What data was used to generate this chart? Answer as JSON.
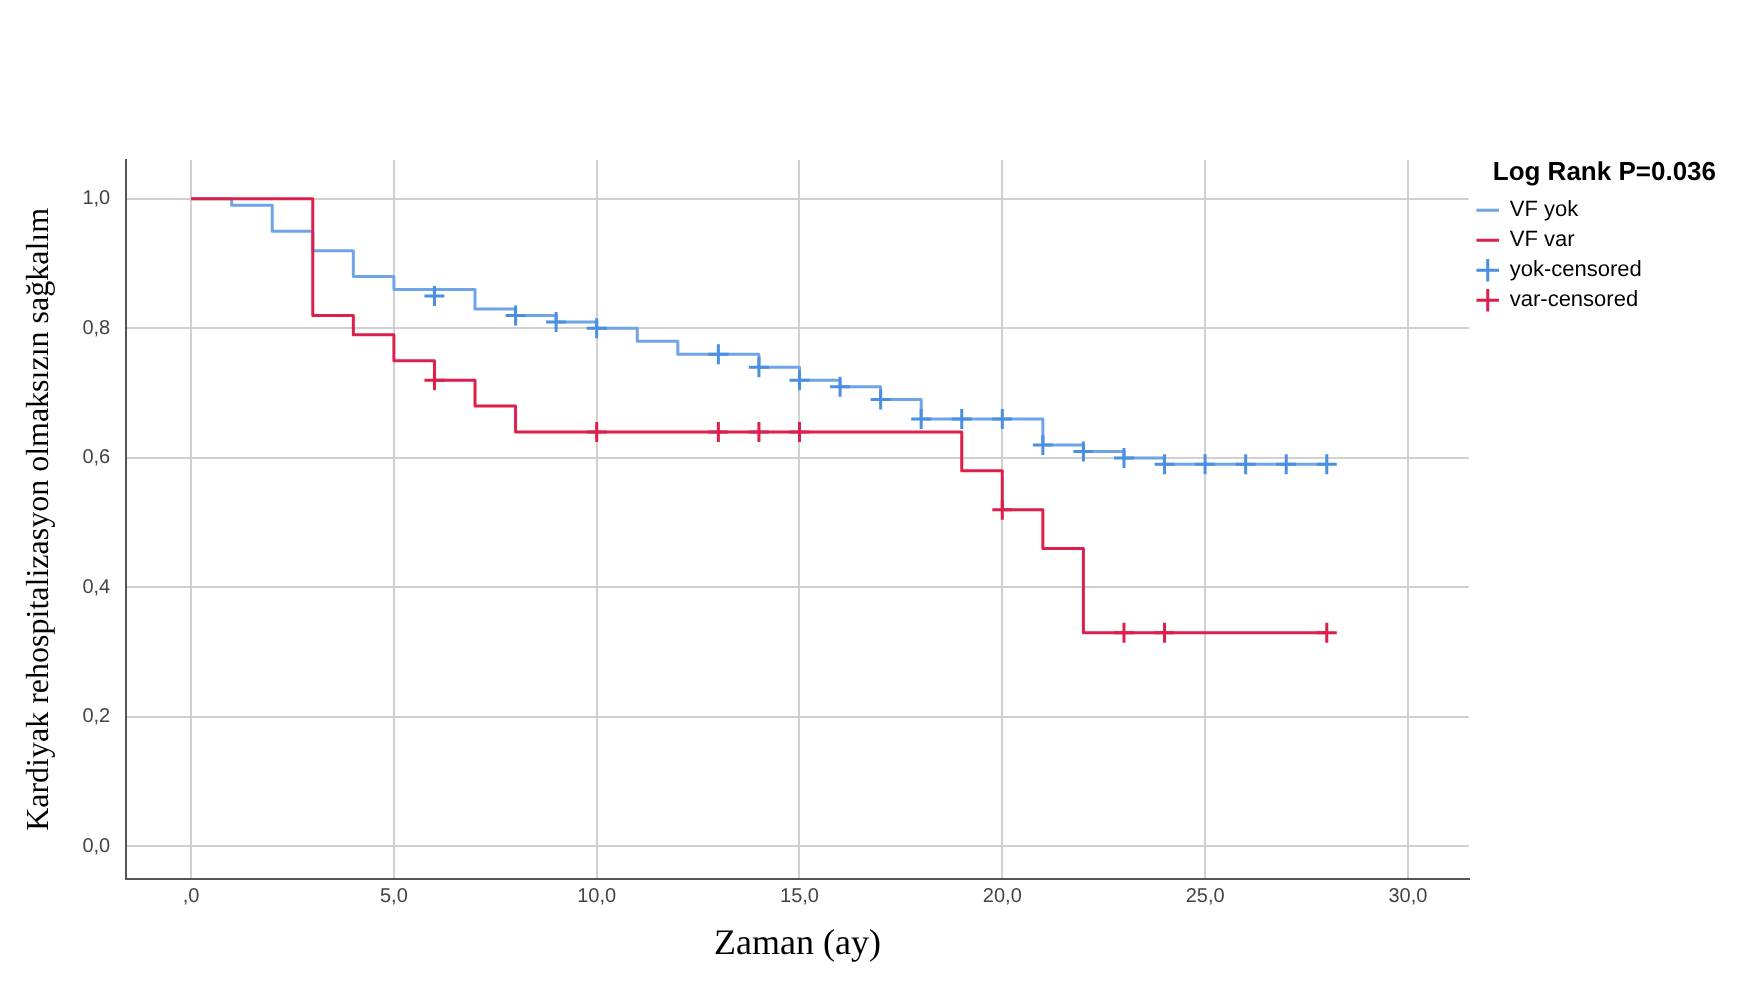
{
  "chart_data": {
    "type": "step",
    "xlabel": "Zaman (ay)",
    "ylabel": "Kardiyak rehospitalizasyon olmaksızın sağkalım",
    "legend_title": "Log Rank P=0.036",
    "legend": "right",
    "grid": true,
    "xlim": [
      -1.6,
      31.5
    ],
    "ylim": [
      -0.05,
      1.06
    ],
    "xticks": [
      {
        "value": 0,
        "label": ",0"
      },
      {
        "value": 5,
        "label": "5,0"
      },
      {
        "value": 10,
        "label": "10,0"
      },
      {
        "value": 15,
        "label": "15,0"
      },
      {
        "value": 20,
        "label": "20,0"
      },
      {
        "value": 25,
        "label": "25,0"
      },
      {
        "value": 30,
        "label": "30,0"
      }
    ],
    "yticks": [
      {
        "value": 0,
        "label": "0,0"
      },
      {
        "value": 0.2,
        "label": "0,2"
      },
      {
        "value": 0.4,
        "label": "0,4"
      },
      {
        "value": 0.6,
        "label": "0,6"
      },
      {
        "value": 0.8,
        "label": "0,8"
      },
      {
        "value": 1,
        "label": "1,0"
      }
    ],
    "series": [
      {
        "name": "VF yok",
        "type": "step",
        "color": "#6fa5e6",
        "marker": "none",
        "x": [
          0,
          1,
          2,
          3,
          4,
          5,
          7,
          8,
          9,
          10,
          11,
          12,
          14,
          15,
          16,
          17,
          18,
          19,
          21,
          22,
          23,
          24,
          28
        ],
        "values": [
          1,
          0.99,
          0.95,
          0.92,
          0.88,
          0.86,
          0.83,
          0.82,
          0.81,
          0.8,
          0.78,
          0.76,
          0.74,
          0.72,
          0.71,
          0.69,
          0.66,
          0.66,
          0.62,
          0.61,
          0.6,
          0.59,
          0.59
        ]
      },
      {
        "name": "VF var",
        "type": "step",
        "color": "#dc1f4b",
        "marker": "none",
        "x": [
          0,
          3,
          4,
          5,
          6,
          7,
          8,
          19,
          20,
          21,
          22,
          28
        ],
        "values": [
          1,
          0.82,
          0.79,
          0.75,
          0.72,
          0.68,
          0.64,
          0.58,
          0.52,
          0.46,
          0.33,
          0.33
        ]
      },
      {
        "name": "yok-censored",
        "type": "scatter",
        "color": "#4a8fe0",
        "marker": "cross",
        "x": [
          6,
          8,
          9,
          10,
          13,
          14,
          15,
          16,
          17,
          18,
          19,
          20,
          21,
          22,
          23,
          24,
          25,
          26,
          27,
          28
        ],
        "values": [
          0.85,
          0.82,
          0.81,
          0.8,
          0.76,
          0.74,
          0.72,
          0.71,
          0.69,
          0.66,
          0.66,
          0.66,
          0.62,
          0.61,
          0.6,
          0.59,
          0.59,
          0.59,
          0.59,
          0.59
        ]
      },
      {
        "name": "var-censored",
        "type": "scatter",
        "color": "#dc1f4b",
        "marker": "cross",
        "x": [
          6,
          10,
          13,
          14,
          15,
          20,
          23,
          24,
          28
        ],
        "values": [
          0.72,
          0.64,
          0.64,
          0.64,
          0.64,
          0.52,
          0.33,
          0.33,
          0.33
        ]
      }
    ]
  }
}
